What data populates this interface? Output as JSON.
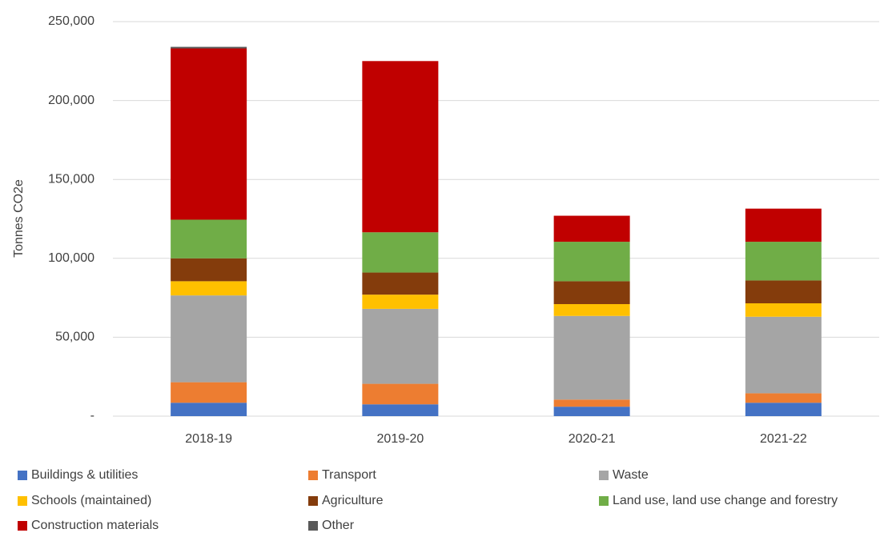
{
  "chart_data": {
    "type": "stacked_bar",
    "y_label": "Tonnes CO2e",
    "categories": [
      "2018-19",
      "2019-20",
      "2020-21",
      "2021-22"
    ],
    "series": [
      {
        "name": "Buildings & utilities",
        "color": "#4472c4",
        "values": [
          8500,
          7500,
          6000,
          8500
        ]
      },
      {
        "name": "Transport",
        "color": "#ed7d31",
        "values": [
          13000,
          13000,
          4500,
          6000
        ]
      },
      {
        "name": "Waste",
        "color": "#a5a5a5",
        "values": [
          55000,
          47500,
          53000,
          48500
        ]
      },
      {
        "name": "Schools (maintained)",
        "color": "#ffc000",
        "values": [
          9000,
          9000,
          7500,
          8500
        ]
      },
      {
        "name": "Agriculture",
        "color": "#843c0c",
        "values": [
          14500,
          14000,
          14500,
          14500
        ]
      },
      {
        "name": "Land use, land use change and forestry",
        "color": "#70ad47",
        "values": [
          24500,
          25500,
          25000,
          24500
        ]
      },
      {
        "name": "Construction materials",
        "color": "#c00000",
        "values": [
          108500,
          108500,
          16500,
          21000
        ]
      },
      {
        "name": "Other",
        "color": "#595959",
        "values": [
          1000,
          0,
          0,
          0
        ]
      }
    ],
    "ylim": [
      0,
      250000
    ],
    "yticks": [
      {
        "value": 0,
        "label": "-"
      },
      {
        "value": 50000,
        "label": "50,000"
      },
      {
        "value": 100000,
        "label": "100,000"
      },
      {
        "value": 150000,
        "label": "150,000"
      },
      {
        "value": 200000,
        "label": "200,000"
      },
      {
        "value": 250000,
        "label": "250,000"
      }
    ],
    "grid": true,
    "legend": "bottom"
  }
}
